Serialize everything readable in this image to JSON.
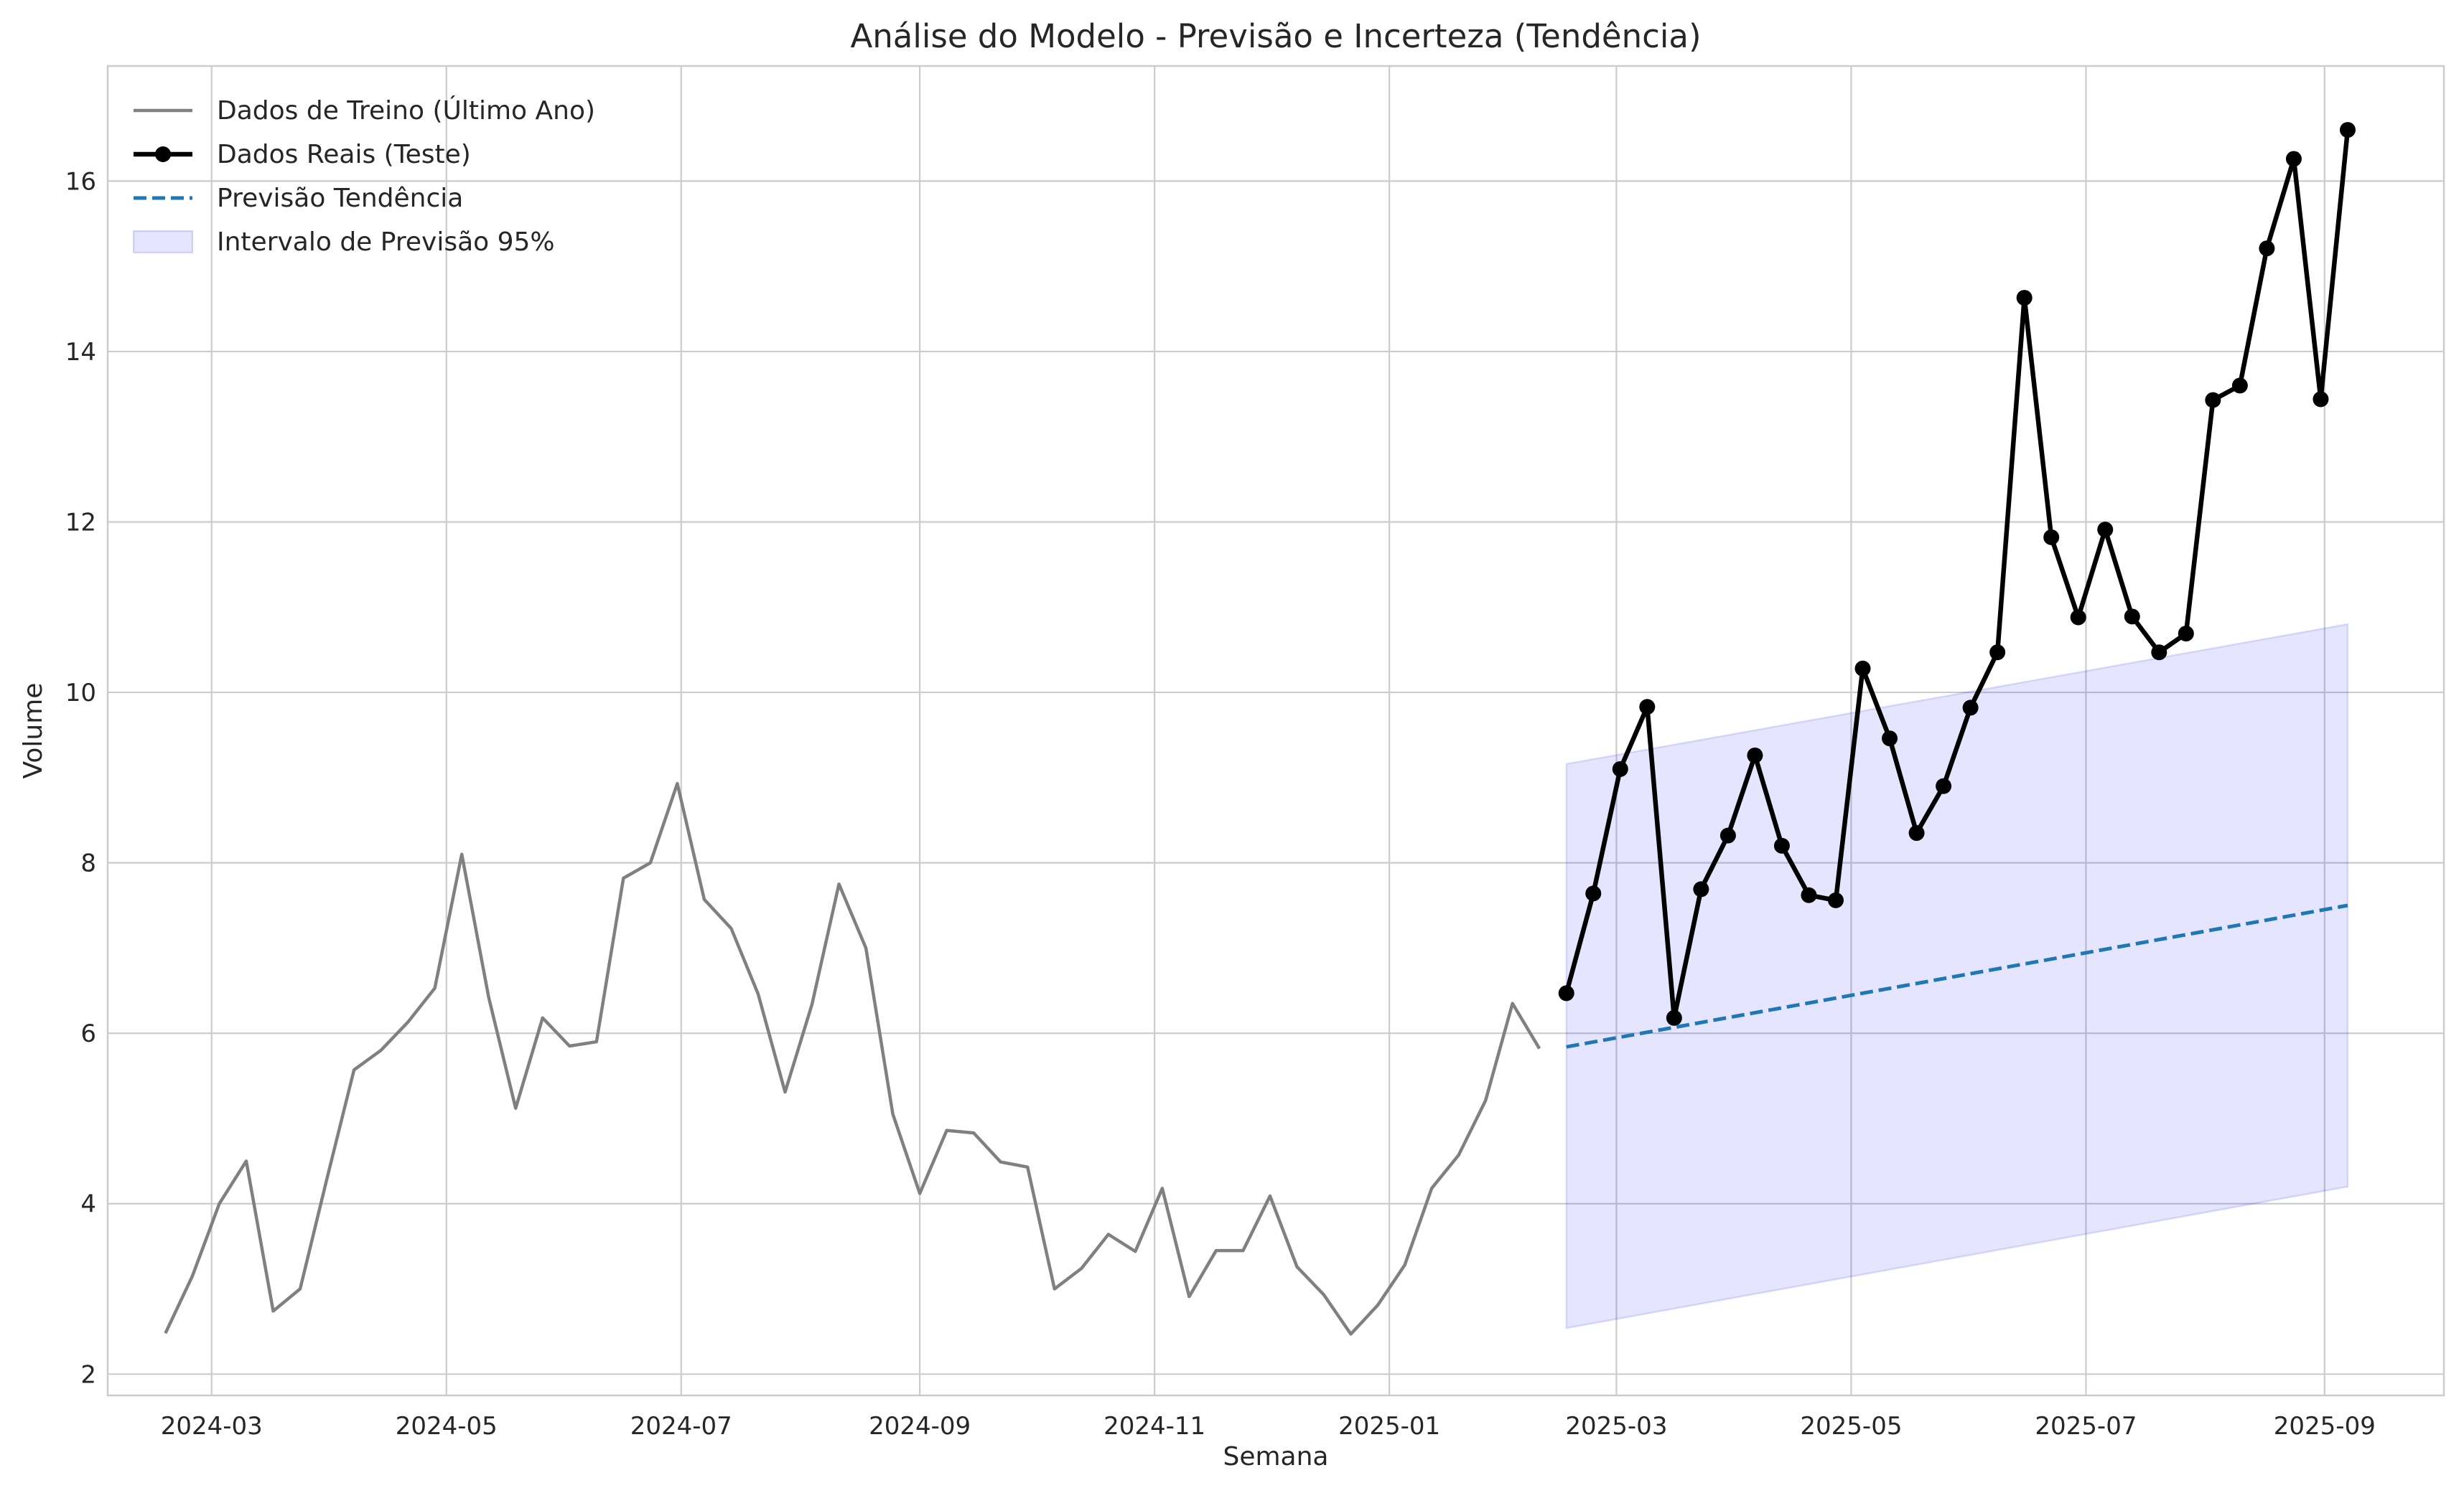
{
  "chart_data": {
    "type": "line",
    "title": "Análise do Modelo - Previsão e Incerteza (Tendência)",
    "xlabel": "Semana",
    "ylabel": "Volume",
    "x_axis_type": "date",
    "xlim": [
      "2024-02-03",
      "2025-10-02"
    ],
    "ylim": [
      1.75,
      17.35
    ],
    "x_ticks": [
      {
        "date": "2024-03-01",
        "label": "2024-03"
      },
      {
        "date": "2024-05-01",
        "label": "2024-05"
      },
      {
        "date": "2024-07-01",
        "label": "2024-07"
      },
      {
        "date": "2024-09-01",
        "label": "2024-09"
      },
      {
        "date": "2024-11-01",
        "label": "2024-11"
      },
      {
        "date": "2025-01-01",
        "label": "2025-01"
      },
      {
        "date": "2025-03-01",
        "label": "2025-03"
      },
      {
        "date": "2025-05-01",
        "label": "2025-05"
      },
      {
        "date": "2025-07-01",
        "label": "2025-07"
      },
      {
        "date": "2025-09-01",
        "label": "2025-09"
      }
    ],
    "y_ticks": [
      2,
      4,
      6,
      8,
      10,
      12,
      14,
      16
    ],
    "grid": true,
    "legend_position": "top-left",
    "series": [
      {
        "name": "Dados de Treino (Último Ano)",
        "style": "line",
        "color": "#808080",
        "x": [
          "2024-02-18",
          "2024-02-25",
          "2024-03-03",
          "2024-03-10",
          "2024-03-17",
          "2024-03-24",
          "2024-03-31",
          "2024-04-07",
          "2024-04-14",
          "2024-04-21",
          "2024-04-28",
          "2024-05-05",
          "2024-05-12",
          "2024-05-19",
          "2024-05-26",
          "2024-06-02",
          "2024-06-09",
          "2024-06-16",
          "2024-06-23",
          "2024-06-30",
          "2024-07-07",
          "2024-07-14",
          "2024-07-21",
          "2024-07-28",
          "2024-08-04",
          "2024-08-11",
          "2024-08-18",
          "2024-08-25",
          "2024-09-01",
          "2024-09-08",
          "2024-09-15",
          "2024-09-22",
          "2024-09-29",
          "2024-10-06",
          "2024-10-13",
          "2024-10-20",
          "2024-10-27",
          "2024-11-03",
          "2024-11-10",
          "2024-11-17",
          "2024-11-24",
          "2024-12-01",
          "2024-12-08",
          "2024-12-15",
          "2024-12-22",
          "2024-12-29",
          "2025-01-05",
          "2025-01-12",
          "2025-01-19",
          "2025-01-26",
          "2025-02-02",
          "2025-02-09"
        ],
        "y": [
          2.48,
          3.15,
          4.0,
          4.5,
          2.74,
          3.0,
          4.3,
          5.57,
          5.8,
          6.13,
          6.53,
          8.1,
          6.42,
          5.12,
          6.18,
          5.85,
          5.9,
          7.82,
          8.0,
          8.93,
          7.57,
          7.23,
          6.46,
          5.31,
          6.34,
          7.75,
          7.0,
          5.05,
          4.12,
          4.86,
          4.83,
          4.49,
          4.43,
          3.0,
          3.24,
          3.64,
          3.44,
          4.18,
          2.91,
          3.45,
          3.45,
          4.09,
          3.26,
          2.93,
          2.47,
          2.81,
          3.28,
          4.18,
          4.57,
          5.21,
          6.35,
          5.82
        ]
      },
      {
        "name": "Dados Reais (Teste)",
        "style": "line-marker",
        "color": "#000000",
        "x": [
          "2025-02-16",
          "2025-02-23",
          "2025-03-02",
          "2025-03-09",
          "2025-03-16",
          "2025-03-23",
          "2025-03-30",
          "2025-04-06",
          "2025-04-13",
          "2025-04-20",
          "2025-04-27",
          "2025-05-04",
          "2025-05-11",
          "2025-05-18",
          "2025-05-25",
          "2025-06-01",
          "2025-06-08",
          "2025-06-15",
          "2025-06-22",
          "2025-06-29",
          "2025-07-06",
          "2025-07-13",
          "2025-07-20",
          "2025-07-27",
          "2025-08-03",
          "2025-08-10",
          "2025-08-17",
          "2025-08-24",
          "2025-08-31",
          "2025-09-07"
        ],
        "y": [
          6.47,
          7.64,
          9.1,
          9.83,
          6.18,
          7.69,
          8.32,
          9.26,
          8.2,
          7.62,
          7.56,
          10.28,
          9.46,
          8.35,
          8.9,
          9.82,
          10.47,
          14.63,
          11.82,
          10.88,
          11.91,
          10.89,
          10.47,
          10.69,
          13.43,
          13.6,
          15.21,
          16.26,
          13.44,
          16.6
        ]
      },
      {
        "name": "Previsão Tendência",
        "style": "dashed",
        "color": "#1f77b4",
        "x": [
          "2025-02-16",
          "2025-09-07"
        ],
        "y": [
          5.84,
          7.5
        ]
      },
      {
        "name": "Intervalo de Previsão 95%",
        "style": "band",
        "color": "#0000ff",
        "x": [
          "2025-02-16",
          "2025-09-07"
        ],
        "y_upper": [
          9.16,
          10.8
        ],
        "y_lower": [
          2.54,
          4.2
        ]
      }
    ]
  }
}
